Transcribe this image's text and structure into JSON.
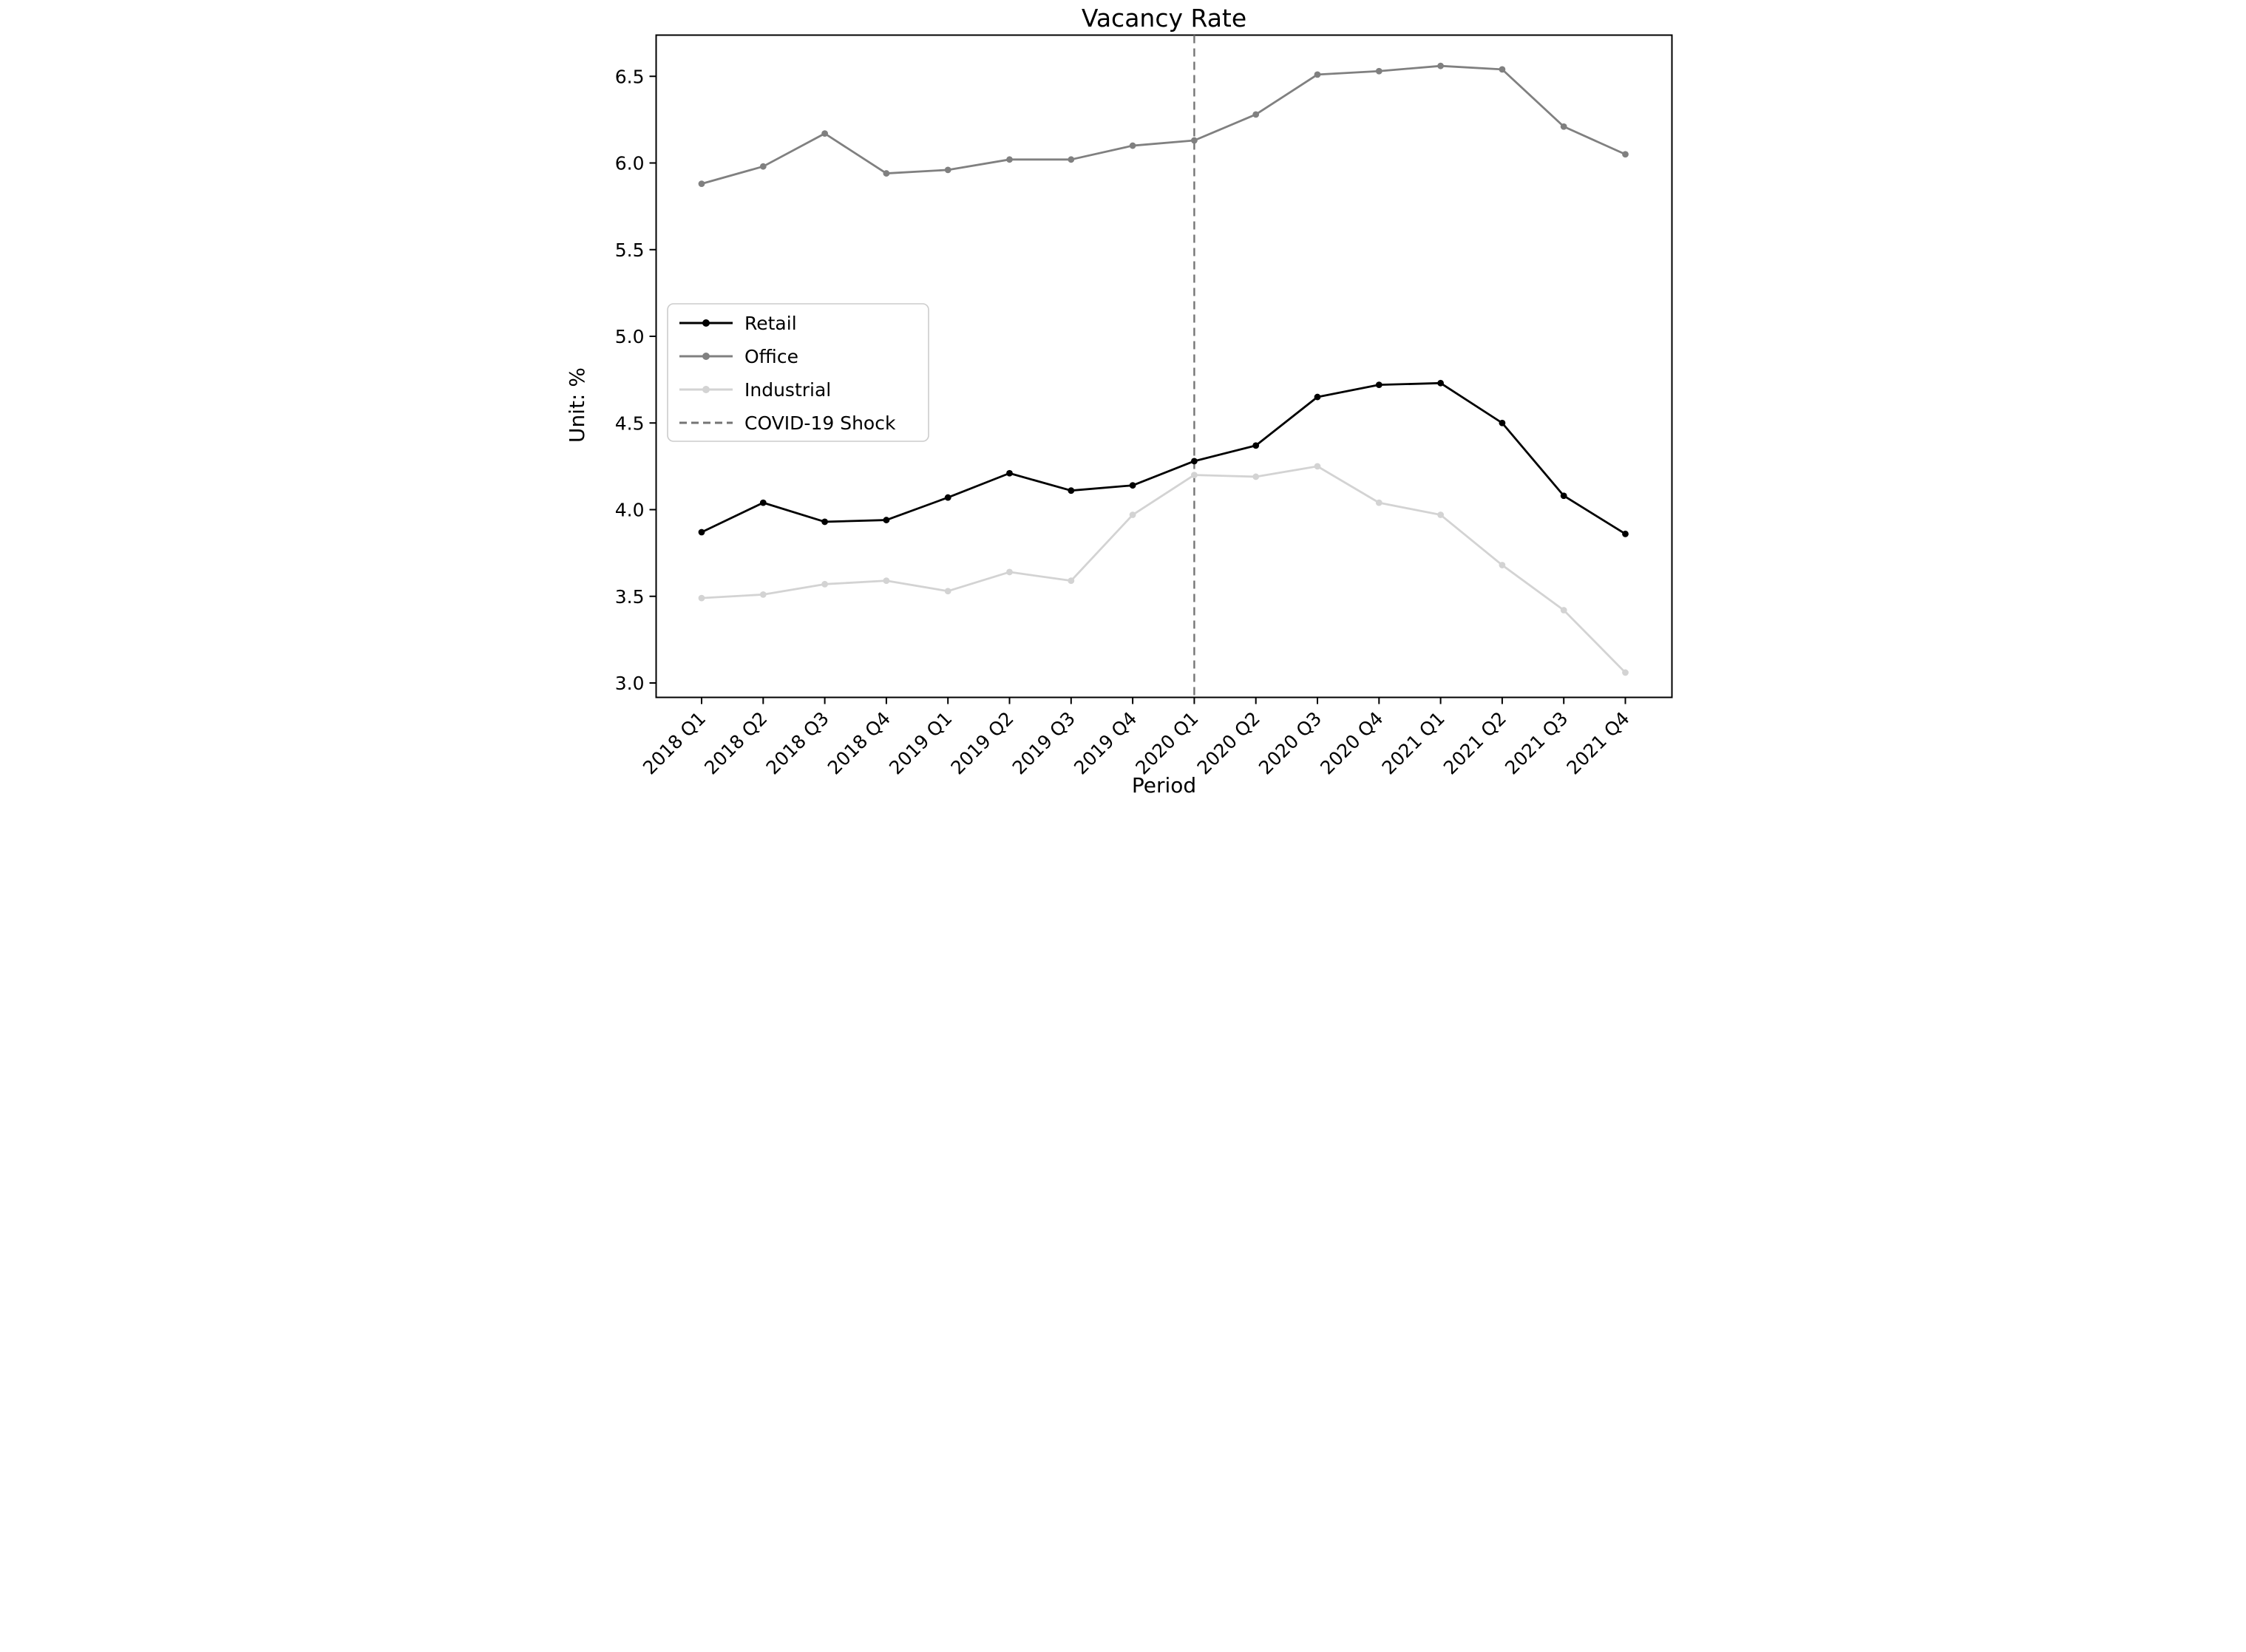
{
  "chart_data": {
    "type": "line",
    "title": "Vacancy Rate",
    "xlabel": "Period",
    "ylabel": "Unit: %",
    "categories": [
      "2018 Q1",
      "2018 Q2",
      "2018 Q3",
      "2018 Q4",
      "2019 Q1",
      "2019 Q2",
      "2019 Q3",
      "2019 Q4",
      "2020 Q1",
      "2020 Q2",
      "2020 Q3",
      "2020 Q4",
      "2021 Q1",
      "2021 Q2",
      "2021 Q3",
      "2021 Q4"
    ],
    "series": [
      {
        "name": "Retail",
        "color": "#000000",
        "values": [
          3.87,
          4.04,
          3.93,
          3.94,
          4.07,
          4.21,
          4.11,
          4.14,
          4.28,
          4.37,
          4.65,
          4.72,
          4.73,
          4.5,
          4.08,
          3.86
        ]
      },
      {
        "name": "Office",
        "color": "#808080",
        "values": [
          5.88,
          5.98,
          6.17,
          5.94,
          5.96,
          6.02,
          6.02,
          6.1,
          6.13,
          6.28,
          6.51,
          6.53,
          6.56,
          6.54,
          6.21,
          6.05
        ]
      },
      {
        "name": "Industrial",
        "color": "#d3d3d3",
        "values": [
          3.49,
          3.51,
          3.57,
          3.59,
          3.53,
          3.64,
          3.59,
          3.97,
          4.2,
          4.19,
          4.25,
          4.04,
          3.97,
          3.68,
          3.42,
          3.06
        ]
      }
    ],
    "annotation": {
      "label": "COVID-19 Shock",
      "x_category": "2020 Q1",
      "style": "dashed-vertical-line",
      "color": "#757575"
    },
    "yticks": [
      3.0,
      3.5,
      4.0,
      4.5,
      5.0,
      5.5,
      6.0,
      6.5
    ],
    "ylim": [
      2.89,
      6.74
    ],
    "legend_entries": [
      "Retail",
      "Office",
      "Industrial",
      "COVID-19 Shock"
    ],
    "legend_position": "center-left-inside",
    "grid": false,
    "marker": "dot",
    "x_tick_rotation_deg": 45
  }
}
